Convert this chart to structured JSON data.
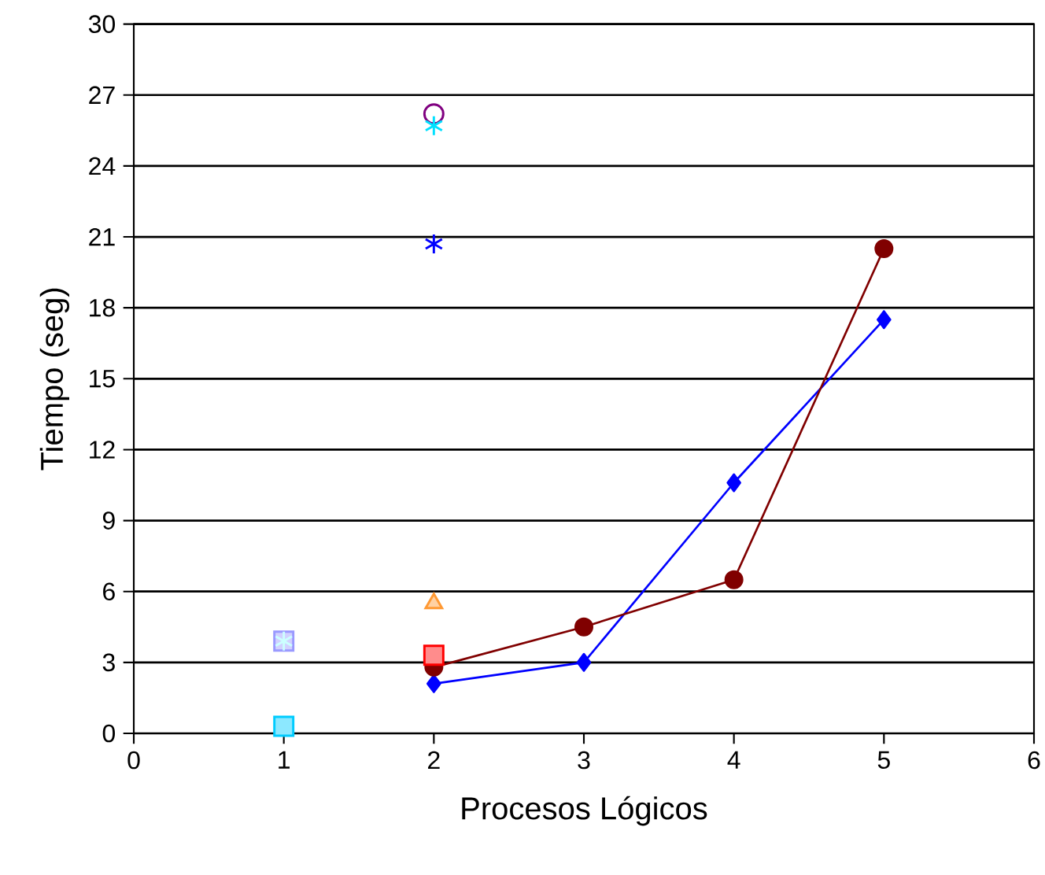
{
  "chart_data": {
    "type": "line",
    "xlabel": "Procesos Lógicos",
    "ylabel": "Tiempo (seg)",
    "xlim": [
      0,
      6
    ],
    "xticks": [
      0,
      1,
      2,
      3,
      4,
      5,
      6
    ],
    "ylim": [
      0,
      30
    ],
    "yticks": [
      0,
      3,
      6,
      9,
      12,
      15,
      18,
      21,
      24,
      27,
      30
    ],
    "grid": "y",
    "series": [
      {
        "color": "#0000ff",
        "marker": "diamond",
        "x": [
          2,
          3,
          4,
          5
        ],
        "values": [
          2.1,
          3.0,
          10.6,
          17.5
        ]
      },
      {
        "color": "#800000",
        "marker": "circle",
        "x": [
          2,
          3,
          4,
          5
        ],
        "values": [
          2.8,
          4.5,
          6.5,
          20.5
        ]
      },
      {
        "type": "scatter",
        "color": "#800080",
        "marker": "circle",
        "x": [
          2
        ],
        "values": [
          26.2
        ]
      },
      {
        "type": "scatter",
        "color": "#00e0ff",
        "marker": "cross",
        "x": [
          2
        ],
        "values": [
          25.7
        ]
      },
      {
        "type": "scatter",
        "color": "#0000ff",
        "marker": "cross",
        "x": [
          2
        ],
        "values": [
          20.7
        ]
      },
      {
        "type": "scatter",
        "color": "#ff9933",
        "marker": "triangle",
        "x": [
          2
        ],
        "values": [
          5.5
        ]
      },
      {
        "type": "scatter",
        "color": "#ff0000",
        "marker": "square",
        "x": [
          2
        ],
        "values": [
          3.3
        ]
      },
      {
        "type": "scatter",
        "color": "#9999ff",
        "marker": "square",
        "x": [
          1
        ],
        "values": [
          3.9
        ]
      },
      {
        "type": "scatter",
        "color": "#ccffff",
        "marker": "cross",
        "x": [
          1
        ],
        "values": [
          3.9
        ]
      },
      {
        "type": "scatter",
        "color": "#00ccff",
        "marker": "square",
        "x": [
          1
        ],
        "values": [
          0.3
        ]
      }
    ]
  }
}
